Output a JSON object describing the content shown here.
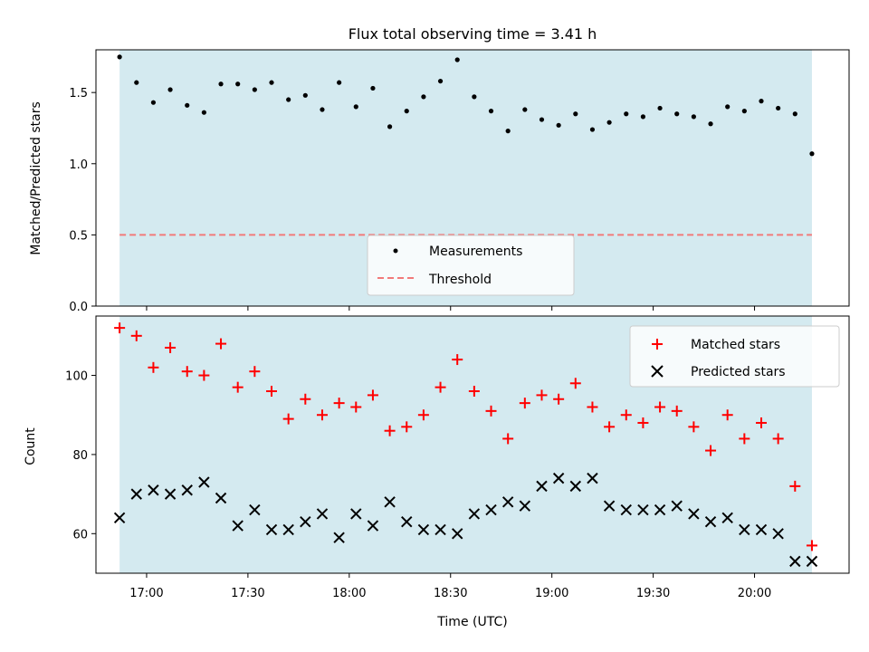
{
  "colors": {
    "observing_span": "#d4eaf0",
    "measurement": "#000000",
    "threshold": "#f27a7a",
    "matched": "#ff0000",
    "predicted": "#000000"
  },
  "chart_data": [
    {
      "type": "scatter",
      "title": "Flux total observing time = 3.41 h",
      "xlabel": "",
      "ylabel": "Matched/Predicted stars",
      "xlim": [
        "16:45",
        "20:28"
      ],
      "ylim": [
        0,
        1.8
      ],
      "yticks": [
        0.0,
        0.5,
        1.0,
        1.5
      ],
      "ytick_labels": [
        "0.0",
        "0.5",
        "1.0",
        "1.5"
      ],
      "observing_span": [
        "16:52",
        "20:17"
      ],
      "threshold": 0.5,
      "legend": {
        "placement": "lower center",
        "entries": [
          "Measurements",
          "Threshold"
        ]
      },
      "series": [
        {
          "name": "Measurements",
          "x": [
            "16:52",
            "16:57",
            "17:02",
            "17:07",
            "17:12",
            "17:17",
            "17:22",
            "17:27",
            "17:32",
            "17:37",
            "17:42",
            "17:47",
            "17:52",
            "17:57",
            "18:02",
            "18:07",
            "18:12",
            "18:17",
            "18:22",
            "18:27",
            "18:32",
            "18:37",
            "18:42",
            "18:47",
            "18:52",
            "18:57",
            "19:02",
            "19:07",
            "19:12",
            "19:17",
            "19:22",
            "19:27",
            "19:32",
            "19:37",
            "19:42",
            "19:47",
            "19:52",
            "19:57",
            "20:02",
            "20:07",
            "20:12",
            "20:17"
          ],
          "y": [
            1.75,
            1.57,
            1.43,
            1.52,
            1.41,
            1.36,
            1.56,
            1.56,
            1.52,
            1.57,
            1.45,
            1.48,
            1.38,
            1.57,
            1.4,
            1.53,
            1.26,
            1.37,
            1.47,
            1.58,
            1.73,
            1.47,
            1.37,
            1.23,
            1.38,
            1.31,
            1.27,
            1.35,
            1.24,
            1.29,
            1.35,
            1.33,
            1.39,
            1.35,
            1.33,
            1.28,
            1.4,
            1.37,
            1.44,
            1.39,
            1.35,
            1.07
          ]
        }
      ]
    },
    {
      "type": "scatter",
      "title": "",
      "xlabel": "Time (UTC)",
      "ylabel": "Count",
      "xlim": [
        "16:45",
        "20:28"
      ],
      "ylim": [
        50,
        115
      ],
      "yticks": [
        60,
        80,
        100
      ],
      "ytick_labels": [
        "60",
        "80",
        "100"
      ],
      "xticks": [
        "17:00",
        "17:30",
        "18:00",
        "18:30",
        "19:00",
        "19:30",
        "20:00"
      ],
      "xtick_labels": [
        "17:00",
        "17:30",
        "18:00",
        "18:30",
        "19:00",
        "19:30",
        "20:00"
      ],
      "observing_span": [
        "16:52",
        "20:17"
      ],
      "legend": {
        "placement": "upper right",
        "entries": [
          "Matched stars",
          "Predicted stars"
        ]
      },
      "series": [
        {
          "name": "Matched stars",
          "x": [
            "16:52",
            "16:57",
            "17:02",
            "17:07",
            "17:12",
            "17:17",
            "17:22",
            "17:27",
            "17:32",
            "17:37",
            "17:42",
            "17:47",
            "17:52",
            "17:57",
            "18:02",
            "18:07",
            "18:12",
            "18:17",
            "18:22",
            "18:27",
            "18:32",
            "18:37",
            "18:42",
            "18:47",
            "18:52",
            "18:57",
            "19:02",
            "19:07",
            "19:12",
            "19:17",
            "19:22",
            "19:27",
            "19:32",
            "19:37",
            "19:42",
            "19:47",
            "19:52",
            "19:57",
            "20:02",
            "20:07",
            "20:12",
            "20:17"
          ],
          "y": [
            112,
            110,
            102,
            107,
            101,
            100,
            108,
            97,
            101,
            96,
            89,
            94,
            90,
            93,
            92,
            95,
            86,
            87,
            90,
            97,
            104,
            96,
            91,
            84,
            93,
            95,
            94,
            98,
            92,
            87,
            90,
            88,
            92,
            91,
            87,
            81,
            90,
            84,
            88,
            84,
            72,
            57
          ]
        },
        {
          "name": "Predicted stars",
          "x": [
            "16:52",
            "16:57",
            "17:02",
            "17:07",
            "17:12",
            "17:17",
            "17:22",
            "17:27",
            "17:32",
            "17:37",
            "17:42",
            "17:47",
            "17:52",
            "17:57",
            "18:02",
            "18:07",
            "18:12",
            "18:17",
            "18:22",
            "18:27",
            "18:32",
            "18:37",
            "18:42",
            "18:47",
            "18:52",
            "18:57",
            "19:02",
            "19:07",
            "19:12",
            "19:17",
            "19:22",
            "19:27",
            "19:32",
            "19:37",
            "19:42",
            "19:47",
            "19:52",
            "19:57",
            "20:02",
            "20:07",
            "20:12",
            "20:17"
          ],
          "y": [
            64,
            70,
            71,
            70,
            71,
            73,
            69,
            62,
            66,
            61,
            61,
            63,
            65,
            59,
            65,
            62,
            68,
            63,
            61,
            61,
            60,
            65,
            66,
            68,
            67,
            72,
            74,
            72,
            74,
            67,
            66,
            66,
            66,
            67,
            65,
            63,
            64,
            61,
            61,
            60,
            53,
            53
          ]
        }
      ]
    }
  ]
}
